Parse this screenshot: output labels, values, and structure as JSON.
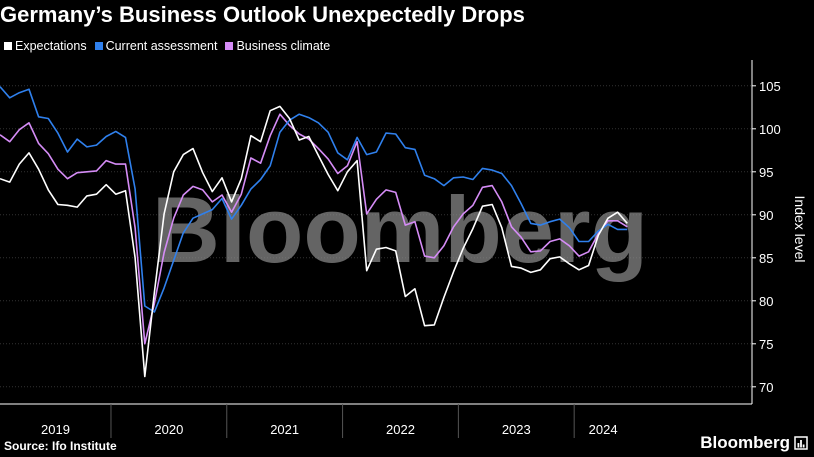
{
  "title": "Germany’s Business Outlook Unexpectedly Drops",
  "source": "Source: Ifo Institute",
  "brand": "Bloomberg",
  "watermark": "Bloomberg",
  "colors": {
    "background": "#000000",
    "expectations": "#ffffff",
    "current": "#2f80ed",
    "climate": "#d58cf6",
    "grid": "#333333"
  },
  "chart_data": {
    "type": "line",
    "ylabel": "Index level",
    "xlabel": "",
    "ylim": [
      68,
      108
    ],
    "yticks": [
      70,
      75,
      80,
      85,
      90,
      95,
      100,
      105
    ],
    "year_labels": [
      "2019",
      "2020",
      "2021",
      "2022",
      "2023",
      "2024"
    ],
    "x_start": "2019-01",
    "grid": true,
    "legend_position": "top-left",
    "series": [
      {
        "name": "Expectations",
        "color": "#ffffff",
        "values": [
          94.2,
          93.8,
          95.9,
          97.2,
          95.3,
          92.9,
          91.2,
          91.1,
          90.9,
          92.2,
          92.4,
          93.5,
          92.4,
          92.8,
          85.0,
          71.2,
          81.0,
          90.1,
          95.0,
          97.0,
          97.7,
          94.9,
          92.7,
          94.3,
          91.5,
          94.2,
          99.2,
          98.5,
          102.1,
          102.6,
          101.2,
          98.7,
          99.1,
          96.9,
          94.7,
          92.8,
          95.0,
          96.3,
          83.5,
          86.0,
          86.2,
          85.8,
          80.5,
          81.4,
          77.1,
          77.2,
          80.4,
          83.4,
          86.1,
          88.4,
          91.0,
          91.2,
          88.5,
          84.0,
          83.8,
          83.3,
          83.6,
          84.9,
          85.1,
          84.3,
          83.6,
          84.1,
          87.6,
          89.6,
          90.3,
          89.0
        ]
      },
      {
        "name": "Current assessment",
        "color": "#2f80ed",
        "values": [
          104.9,
          103.6,
          104.2,
          104.6,
          101.4,
          101.2,
          99.5,
          97.3,
          98.8,
          97.9,
          98.1,
          99.1,
          99.7,
          99.0,
          93.0,
          79.4,
          78.7,
          81.5,
          84.7,
          87.9,
          89.6,
          90.1,
          90.6,
          91.9,
          89.5,
          91.1,
          93.0,
          94.1,
          95.7,
          99.6,
          101.0,
          101.7,
          101.3,
          100.7,
          99.6,
          97.2,
          96.4,
          99.0,
          97.0,
          97.3,
          99.5,
          99.4,
          97.8,
          97.6,
          94.6,
          94.2,
          93.4,
          94.3,
          94.4,
          94.1,
          95.4,
          95.2,
          94.8,
          93.4,
          91.3,
          89.0,
          88.8,
          89.2,
          89.5,
          88.5,
          86.9,
          86.9,
          88.1,
          88.9,
          88.3,
          88.3
        ]
      },
      {
        "name": "Business climate",
        "color": "#d58cf6",
        "values": [
          99.3,
          98.5,
          99.9,
          100.7,
          98.3,
          97.1,
          95.3,
          94.2,
          94.9,
          95.0,
          95.1,
          96.3,
          95.9,
          95.9,
          88.5,
          75.0,
          79.7,
          85.6,
          89.6,
          92.3,
          93.3,
          92.9,
          91.5,
          92.3,
          90.3,
          92.4,
          96.6,
          96.0,
          99.2,
          101.7,
          100.4,
          99.4,
          98.8,
          97.7,
          96.5,
          94.8,
          95.7,
          98.5,
          90.1,
          91.8,
          92.9,
          92.6,
          88.8,
          89.2,
          85.2,
          85.0,
          86.4,
          88.6,
          90.1,
          91.1,
          93.2,
          93.4,
          91.5,
          88.6,
          87.4,
          85.7,
          85.8,
          86.9,
          87.2,
          86.4,
          85.2,
          85.7,
          87.8,
          89.3,
          89.3,
          88.6
        ]
      }
    ]
  }
}
